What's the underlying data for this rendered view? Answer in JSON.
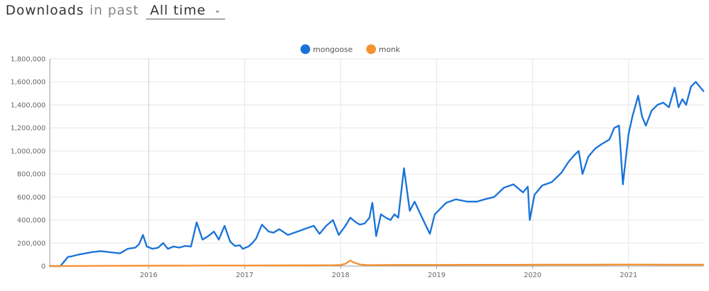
{
  "header": {
    "title": "Downloads",
    "subtitle": "in past",
    "range_value": "All time",
    "chevron_icon": "chevron-down-icon"
  },
  "chart_data": {
    "type": "line",
    "title": "",
    "xlabel": "",
    "ylabel": "",
    "ylim": [
      0,
      1800000
    ],
    "y_ticks": [
      0,
      200000,
      400000,
      600000,
      800000,
      1000000,
      1200000,
      1400000,
      1600000,
      1800000
    ],
    "y_tick_labels": [
      "0",
      "200,000",
      "400,000",
      "600,000",
      "800,000",
      "1,000,000",
      "1,200,000",
      "1,400,000",
      "1,600,000",
      "1,800,000"
    ],
    "xlim": [
      2014.97,
      2021.78
    ],
    "x_ticks": [
      2016,
      2017,
      2018,
      2019,
      2020,
      2021
    ],
    "x_tick_labels": [
      "2016",
      "2017",
      "2018",
      "2019",
      "2020",
      "2021"
    ],
    "grid": true,
    "legend_position": "top-center",
    "series": [
      {
        "name": "mongoose",
        "color": "#1a73d9",
        "x": [
          2014.97,
          2015.08,
          2015.16,
          2015.2,
          2015.27,
          2015.34,
          2015.4,
          2015.5,
          2015.6,
          2015.7,
          2015.78,
          2015.86,
          2015.9,
          2015.94,
          2015.98,
          2016.04,
          2016.1,
          2016.15,
          2016.2,
          2016.26,
          2016.32,
          2016.38,
          2016.44,
          2016.5,
          2016.56,
          2016.62,
          2016.68,
          2016.73,
          2016.79,
          2016.85,
          2016.9,
          2016.95,
          2016.98,
          2017.04,
          2017.08,
          2017.12,
          2017.18,
          2017.25,
          2017.3,
          2017.36,
          2017.45,
          2017.55,
          2017.65,
          2017.72,
          2017.78,
          2017.85,
          2017.92,
          2017.98,
          2018.05,
          2018.1,
          2018.16,
          2018.2,
          2018.25,
          2018.3,
          2018.33,
          2018.37,
          2018.42,
          2018.47,
          2018.52,
          2018.56,
          2018.6,
          2018.66,
          2018.72,
          2018.77,
          2018.82,
          2018.9,
          2018.93,
          2018.98,
          2019.1,
          2019.2,
          2019.32,
          2019.42,
          2019.5,
          2019.6,
          2019.7,
          2019.8,
          2019.9,
          2019.95,
          2019.97,
          2020.02,
          2020.1,
          2020.2,
          2020.3,
          2020.37,
          2020.43,
          2020.48,
          2020.52,
          2020.58,
          2020.65,
          2020.72,
          2020.8,
          2020.85,
          2020.9,
          2020.94,
          2021.0,
          2021.04,
          2021.1,
          2021.14,
          2021.18,
          2021.24,
          2021.3,
          2021.36,
          2021.42,
          2021.48,
          2021.52,
          2021.56,
          2021.6,
          2021.65,
          2021.7,
          2021.74,
          2021.78
        ],
        "values": [
          0,
          0,
          80000,
          85000,
          100000,
          110000,
          120000,
          130000,
          120000,
          110000,
          150000,
          160000,
          190000,
          270000,
          170000,
          150000,
          160000,
          200000,
          150000,
          170000,
          160000,
          175000,
          170000,
          380000,
          230000,
          260000,
          300000,
          230000,
          350000,
          210000,
          175000,
          180000,
          150000,
          170000,
          200000,
          240000,
          360000,
          300000,
          290000,
          320000,
          270000,
          300000,
          330000,
          350000,
          280000,
          350000,
          400000,
          270000,
          350000,
          420000,
          380000,
          360000,
          370000,
          420000,
          550000,
          260000,
          450000,
          420000,
          400000,
          450000,
          420000,
          850000,
          480000,
          560000,
          470000,
          330000,
          280000,
          450000,
          550000,
          580000,
          560000,
          560000,
          580000,
          600000,
          680000,
          710000,
          640000,
          690000,
          400000,
          620000,
          700000,
          730000,
          810000,
          900000,
          960000,
          1000000,
          800000,
          950000,
          1020000,
          1060000,
          1100000,
          1200000,
          1220000,
          710000,
          1150000,
          1300000,
          1480000,
          1300000,
          1220000,
          1350000,
          1400000,
          1420000,
          1380000,
          1550000,
          1380000,
          1450000,
          1400000,
          1560000,
          1600000,
          1560000,
          1520000
        ]
      },
      {
        "name": "monk",
        "color": "#f59233",
        "x": [
          2014.97,
          2015.5,
          2016.0,
          2016.5,
          2017.0,
          2017.5,
          2017.9,
          2018.0,
          2018.05,
          2018.1,
          2018.14,
          2018.2,
          2018.28,
          2018.4,
          2018.6,
          2018.9,
          2019.3,
          2019.8,
          2020.2,
          2020.6,
          2021.0,
          2021.4,
          2021.78
        ],
        "values": [
          0,
          2000,
          3000,
          4000,
          5000,
          6000,
          7000,
          9000,
          20000,
          48000,
          30000,
          14000,
          8000,
          9000,
          10000,
          10000,
          11000,
          11000,
          12000,
          12000,
          13000,
          12000,
          12000
        ]
      }
    ]
  }
}
